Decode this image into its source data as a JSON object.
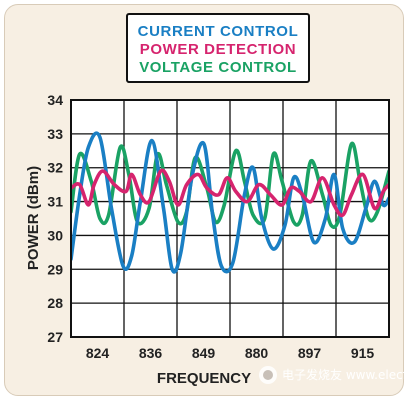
{
  "chart_data": {
    "type": "line",
    "xlabel": "FREQUENCY",
    "ylabel": "POWER (dBm)",
    "ylim": [
      27,
      34
    ],
    "yticks": [
      27,
      28,
      29,
      30,
      31,
      32,
      33,
      34
    ],
    "xrange": [
      815,
      925
    ],
    "xtick_labels": [
      "824",
      "836",
      "849",
      "880",
      "897",
      "915"
    ],
    "grid": true,
    "legend_position": "top-center",
    "series": [
      {
        "name": "CURRENT CONTROL",
        "color": "#1a7fc4",
        "x": [
          815,
          818,
          821,
          825,
          829,
          833,
          836,
          839,
          843,
          847,
          850,
          853,
          857,
          861,
          864,
          867,
          871,
          875,
          878,
          881,
          885,
          889,
          892,
          895,
          899,
          903,
          906,
          909,
          913,
          917,
          920,
          923,
          925
        ],
        "y": [
          29.3,
          31.2,
          32.6,
          32.9,
          30.8,
          29.1,
          29.4,
          31.0,
          32.8,
          30.8,
          29.0,
          29.5,
          31.8,
          32.7,
          30.6,
          29.1,
          29.2,
          31.2,
          32.0,
          30.5,
          29.6,
          30.3,
          31.7,
          31.2,
          29.8,
          30.5,
          31.8,
          30.2,
          29.8,
          30.8,
          31.6,
          30.9,
          31.1
        ]
      },
      {
        "name": "POWER DETECTION",
        "color": "#d6246e",
        "x": [
          815,
          818,
          821,
          823,
          826,
          830,
          834,
          836,
          839,
          842,
          846,
          849,
          852,
          855,
          859,
          862,
          866,
          869,
          872,
          876,
          880,
          884,
          888,
          891,
          894,
          898,
          902,
          906,
          909,
          912,
          916,
          920,
          923,
          925
        ],
        "y": [
          31.4,
          31.5,
          30.9,
          31.5,
          31.9,
          31.5,
          31.3,
          31.8,
          31.2,
          31.0,
          31.9,
          31.6,
          30.9,
          31.5,
          31.8,
          31.4,
          31.2,
          31.7,
          31.3,
          31.0,
          31.5,
          31.2,
          30.9,
          31.4,
          31.3,
          31.0,
          31.7,
          30.9,
          30.6,
          31.2,
          31.8,
          30.8,
          31.3,
          31.5
        ]
      },
      {
        "name": "VOLTAGE CONTROL",
        "color": "#1aa264",
        "x": [
          815,
          818,
          822,
          825,
          828,
          832,
          835,
          838,
          842,
          845,
          848,
          852,
          855,
          858,
          862,
          865,
          868,
          872,
          875,
          878,
          882,
          885,
          888,
          892,
          895,
          898,
          902,
          905,
          908,
          912,
          915,
          918,
          921,
          925
        ],
        "y": [
          30.7,
          32.4,
          31.6,
          30.5,
          30.6,
          32.6,
          31.8,
          30.4,
          30.8,
          32.4,
          31.5,
          30.4,
          30.7,
          32.3,
          31.4,
          30.4,
          30.9,
          32.5,
          31.6,
          30.6,
          30.5,
          32.4,
          31.6,
          30.4,
          30.6,
          32.2,
          31.2,
          30.3,
          30.6,
          32.7,
          31.6,
          30.5,
          30.7,
          31.9
        ]
      }
    ]
  },
  "legend": {
    "current": "CURRENT CONTROL",
    "power": "POWER DETECTION",
    "voltage": "VOLTAGE CONTROL"
  },
  "watermark": "电子发烧友 www.elecfans.com"
}
